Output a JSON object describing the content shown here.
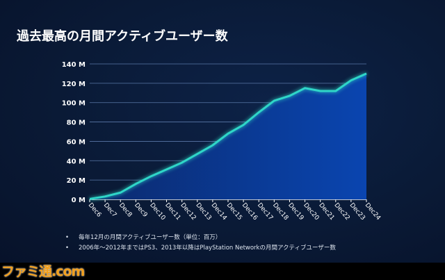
{
  "title": "過去最高の月間アクティブユーザー数",
  "notes": [
    "毎年12月の月間アクティブユーザー数（単位：百万）",
    "2006年～2012年まではPS3、2013年以降はPlayStation Networkの月間アクティブユーザー数"
  ],
  "logo": "ファミ通.com",
  "chart_data": {
    "type": "area",
    "categories": [
      "Dec6",
      "Dec7",
      "Dec8",
      "Dec9",
      "Dec10",
      "Dec11",
      "Dec12",
      "Dec13",
      "Dec14",
      "Dec15",
      "Dec16",
      "Dec17",
      "Dec18",
      "Dec19",
      "Dec20",
      "Dec21",
      "Dec22",
      "Dec23",
      "Dec24"
    ],
    "values": [
      0.5,
      3,
      7,
      16,
      24,
      31,
      38,
      47,
      56,
      68,
      77,
      90,
      102,
      107,
      115,
      112,
      112,
      123,
      130
    ],
    "y_ticks": [
      "0 M",
      "20 M",
      "40 M",
      "60 M",
      "80 M",
      "100 M",
      "120 M",
      "140 M"
    ],
    "ylim": [
      0,
      140
    ],
    "grid": true,
    "colors": {
      "line": "#2fd6c8",
      "fill_top": "#0a3a9a",
      "fill_bottom": "#0b2a6e"
    }
  }
}
